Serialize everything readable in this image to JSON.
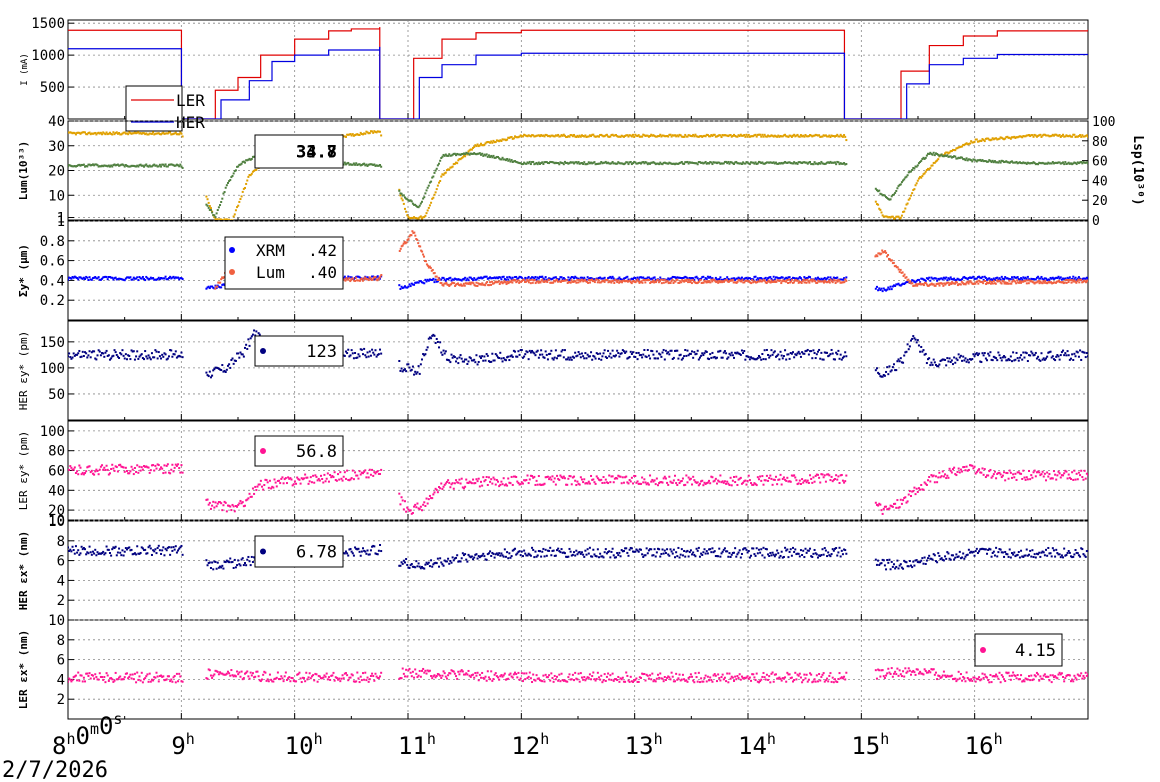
{
  "chart_data": [
    {
      "type": "line",
      "panel": "beam-current",
      "ylabel": "I (mA)",
      "ylim": [
        0,
        1550
      ],
      "yticks": [
        "500",
        "1000",
        "1500"
      ],
      "ytick_values": [
        500,
        1000,
        1500
      ],
      "legend": {
        "placement": "bottom-left",
        "entries": [
          "LER",
          "HER"
        ]
      },
      "series": [
        {
          "name": "LER",
          "color": "#e00000",
          "x": [
            8.0,
            9.0,
            9.001,
            9.2,
            9.3,
            9.5,
            9.7,
            10.0,
            10.3,
            10.5,
            10.75,
            10.751,
            10.9,
            11.05,
            11.3,
            11.6,
            12.0,
            13.0,
            14.0,
            14.85,
            14.851,
            15.15,
            15.35,
            15.6,
            15.9,
            16.2,
            17.0
          ],
          "y": [
            1390,
            1390,
            0,
            0,
            450,
            650,
            1000,
            1250,
            1380,
            1410,
            1430,
            0,
            0,
            950,
            1250,
            1350,
            1390,
            1390,
            1390,
            1380,
            0,
            0,
            750,
            1150,
            1300,
            1380,
            1400
          ]
        },
        {
          "name": "HER",
          "color": "#0000e0",
          "x": [
            8.0,
            9.0,
            9.001,
            9.2,
            9.35,
            9.6,
            9.8,
            10.0,
            10.3,
            10.75,
            10.751,
            10.95,
            11.1,
            11.3,
            11.6,
            12.0,
            13.0,
            14.85,
            14.851,
            15.2,
            15.4,
            15.6,
            15.9,
            16.2,
            17.0
          ],
          "y": [
            1100,
            1100,
            0,
            0,
            300,
            600,
            900,
            1000,
            1080,
            1120,
            0,
            0,
            650,
            850,
            1000,
            1030,
            1030,
            1030,
            0,
            0,
            550,
            850,
            950,
            1010,
            1020
          ]
        }
      ]
    },
    {
      "type": "scatter",
      "panel": "luminosity",
      "ylabel": "Lum(10³³)",
      "ylabel_right": "Lsp(10³⁰)",
      "ylim": [
        0,
        40
      ],
      "yticks": [
        "1",
        "10",
        "20",
        "30",
        "40"
      ],
      "ytick_values": [
        1,
        10,
        20,
        30,
        40
      ],
      "ylim_right": [
        0,
        100
      ],
      "yticks_right": [
        "0",
        "20",
        "40",
        "60",
        "80",
        "100"
      ],
      "ytick_values_right": [
        0,
        20,
        40,
        60,
        80,
        100
      ],
      "legend": {
        "placement": "top-center",
        "values": [
          "33.7",
          "34.8"
        ]
      },
      "series": [
        {
          "color": "#e0a000",
          "x": [
            8.0,
            9.0,
            9.3,
            9.45,
            9.6,
            9.8,
            10.0,
            10.3,
            10.75,
            11.0,
            11.15,
            11.3,
            11.6,
            12.0,
            13.0,
            14.0,
            14.85,
            15.2,
            15.35,
            15.5,
            15.7,
            16.0,
            16.5,
            17.0
          ],
          "y": [
            35,
            35,
            0,
            0,
            18,
            26,
            30,
            33,
            36,
            1,
            1,
            18,
            30,
            34,
            34,
            34,
            34,
            1,
            1,
            16,
            26,
            32,
            34,
            34
          ]
        },
        {
          "color": "#508040",
          "x": [
            8.0,
            9.0,
            9.3,
            9.4,
            9.5,
            9.7,
            10.0,
            10.75,
            10.95,
            11.1,
            11.3,
            11.6,
            12.0,
            13.0,
            14.0,
            14.85,
            15.25,
            15.4,
            15.6,
            16.0,
            16.5,
            17.0
          ],
          "y": [
            22,
            22,
            1,
            14,
            22,
            27,
            24,
            22,
            10,
            5,
            26,
            27,
            23,
            23,
            23,
            23,
            8,
            18,
            27,
            24,
            23,
            23
          ]
        }
      ]
    },
    {
      "type": "scatter",
      "panel": "sigma-y",
      "ylabel": "Σy* (μm)",
      "ylim": [
        0,
        1.0
      ],
      "yticks": [
        "0.2",
        "0.4",
        "0.6",
        "0.8",
        "1"
      ],
      "ytick_values": [
        0.2,
        0.4,
        0.6,
        0.8,
        1.0
      ],
      "legend": {
        "placement": "top-left",
        "entries": [
          "XRM",
          "Lum"
        ],
        "values": [
          ".42",
          ".40"
        ]
      },
      "series": [
        {
          "name": "XRM",
          "color": "#0000ff",
          "x": [
            8.0,
            9.0,
            9.25,
            9.5,
            9.75,
            10.0,
            10.75,
            10.95,
            11.1,
            11.3,
            11.6,
            12.0,
            14.85,
            15.2,
            15.4,
            15.6,
            16.0,
            17.0
          ],
          "y": [
            0.42,
            0.42,
            0.32,
            0.38,
            0.41,
            0.42,
            0.43,
            0.32,
            0.38,
            0.41,
            0.42,
            0.42,
            0.42,
            0.3,
            0.38,
            0.41,
            0.42,
            0.42
          ]
        },
        {
          "name": "Lum",
          "color": "#f06040",
          "x": [
            9.3,
            9.5,
            9.6,
            9.8,
            10.0,
            10.75,
            11.05,
            11.15,
            11.3,
            11.6,
            12.0,
            14.85,
            15.2,
            15.3,
            15.45,
            15.7,
            16.0,
            17.0
          ],
          "y": [
            0.32,
            0.65,
            0.45,
            0.38,
            0.39,
            0.42,
            0.9,
            0.6,
            0.36,
            0.36,
            0.39,
            0.39,
            0.7,
            0.55,
            0.36,
            0.36,
            0.38,
            0.39
          ]
        }
      ]
    },
    {
      "type": "scatter",
      "panel": "her-emittance-y",
      "ylabel": "HER εy* (pm)",
      "ylim": [
        0,
        190
      ],
      "yticks": [
        "50",
        "100",
        "150"
      ],
      "ytick_values": [
        50,
        100,
        150
      ],
      "legend": {
        "placement": "top-center",
        "values": [
          "123"
        ]
      },
      "series": [
        {
          "color": "#000080",
          "x": [
            8.0,
            9.0,
            9.25,
            9.4,
            9.55,
            9.65,
            9.8,
            10.0,
            10.75,
            10.95,
            11.1,
            11.2,
            11.35,
            11.6,
            12.0,
            13.0,
            14.0,
            14.85,
            15.2,
            15.35,
            15.45,
            15.6,
            16.0,
            17.0
          ],
          "y": [
            125,
            125,
            90,
            100,
            130,
            170,
            115,
            120,
            130,
            100,
            95,
            165,
            120,
            115,
            125,
            125,
            125,
            125,
            90,
            110,
            160,
            110,
            120,
            125
          ]
        }
      ]
    },
    {
      "type": "scatter",
      "panel": "ler-emittance-y",
      "ylabel": "LER εy* (pm)",
      "ylim": [
        10,
        110
      ],
      "yticks": [
        "10",
        "20",
        "40",
        "60",
        "80",
        "100"
      ],
      "ytick_values": [
        10,
        20,
        40,
        60,
        80,
        100
      ],
      "legend": {
        "placement": "top-center",
        "values": [
          "56.8"
        ]
      },
      "series": [
        {
          "color": "#ff1493",
          "x": [
            8.0,
            9.0,
            9.25,
            9.5,
            9.7,
            10.0,
            10.75,
            11.0,
            11.15,
            11.3,
            11.6,
            12.0,
            13.0,
            14.0,
            14.85,
            15.2,
            15.35,
            15.6,
            15.9,
            16.2,
            17.0
          ],
          "y": [
            60,
            62,
            25,
            22,
            45,
            50,
            58,
            20,
            25,
            45,
            48,
            50,
            50,
            50,
            52,
            20,
            28,
            50,
            62,
            55,
            55
          ]
        }
      ]
    },
    {
      "type": "scatter",
      "panel": "her-emittance-x",
      "ylabel": "HER εx* (nm)",
      "ylim": [
        0,
        10
      ],
      "yticks": [
        "2",
        "4",
        "6",
        "8",
        "10"
      ],
      "ytick_values": [
        2,
        4,
        6,
        8,
        10
      ],
      "legend": {
        "placement": "top-center",
        "values": [
          "6.78"
        ]
      },
      "series": [
        {
          "color": "#000080",
          "x": [
            8.0,
            9.0,
            9.25,
            9.5,
            10.0,
            10.75,
            10.95,
            11.1,
            11.3,
            11.6,
            12.0,
            14.85,
            15.2,
            15.4,
            15.6,
            16.0,
            17.0
          ],
          "y": [
            7.0,
            7.0,
            5.5,
            5.8,
            6.5,
            7.1,
            5.8,
            5.4,
            5.9,
            6.5,
            6.8,
            6.8,
            5.6,
            5.6,
            6.2,
            6.8,
            6.8
          ]
        }
      ]
    },
    {
      "type": "scatter",
      "panel": "ler-emittance-x",
      "ylabel": "LER εx* (nm)",
      "ylim": [
        0,
        10
      ],
      "yticks": [
        "2",
        "4",
        "6",
        "8",
        "10"
      ],
      "ytick_values": [
        2,
        4,
        6,
        8,
        10
      ],
      "legend": {
        "placement": "top-right",
        "values": [
          "4.15"
        ]
      },
      "series": [
        {
          "color": "#ff1493",
          "x": [
            8.0,
            9.0,
            9.3,
            9.5,
            10.0,
            10.75,
            11.0,
            11.2,
            11.6,
            12.0,
            13.0,
            14.0,
            14.85,
            15.2,
            15.5,
            15.8,
            16.0,
            17.0
          ],
          "y": [
            4.2,
            4.2,
            4.6,
            4.4,
            4.2,
            4.2,
            4.7,
            4.6,
            4.4,
            4.2,
            4.2,
            4.2,
            4.2,
            4.6,
            4.8,
            4.3,
            4.2,
            4.2
          ]
        }
      ]
    }
  ],
  "x_axis": {
    "range": [
      8.0,
      17.0
    ],
    "ticks": [
      {
        "value": 8.0,
        "label": "8h0m0s"
      },
      {
        "value": 9.0,
        "label": "9h"
      },
      {
        "value": 10.0,
        "label": "10h"
      },
      {
        "value": 11.0,
        "label": "11h"
      },
      {
        "value": 12.0,
        "label": "12h"
      },
      {
        "value": 13.0,
        "label": "13h"
      },
      {
        "value": 14.0,
        "label": "14h"
      },
      {
        "value": 15.0,
        "label": "15h"
      },
      {
        "value": 16.0,
        "label": "16h"
      }
    ],
    "date": "2/7/2026",
    "grid": true
  }
}
